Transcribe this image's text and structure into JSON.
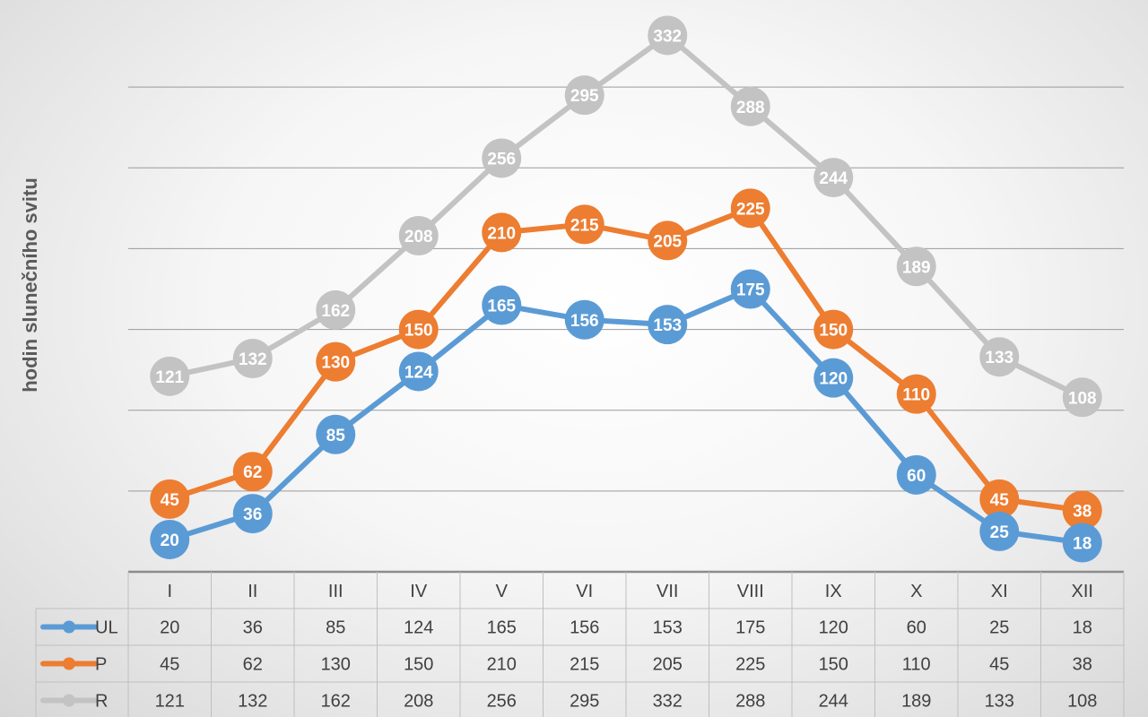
{
  "chart_data": {
    "type": "line",
    "ylabel": "hodin slunečního svitu",
    "categories": [
      "I",
      "II",
      "III",
      "IV",
      "V",
      "VI",
      "VII",
      "VIII",
      "IX",
      "X",
      "XI",
      "XII"
    ],
    "ylim": [
      0,
      350
    ],
    "grid": true,
    "data_table": true,
    "series": [
      {
        "name": "UL",
        "color": "#5b9bd5",
        "values": [
          20,
          36,
          85,
          124,
          165,
          156,
          153,
          175,
          120,
          60,
          25,
          18
        ]
      },
      {
        "name": "P",
        "color": "#ed7d31",
        "values": [
          45,
          62,
          130,
          150,
          210,
          215,
          205,
          225,
          150,
          110,
          45,
          38
        ]
      },
      {
        "name": "R",
        "color": "#c3c3c3",
        "values": [
          121,
          132,
          162,
          208,
          256,
          295,
          332,
          288,
          244,
          189,
          133,
          108
        ]
      }
    ]
  }
}
